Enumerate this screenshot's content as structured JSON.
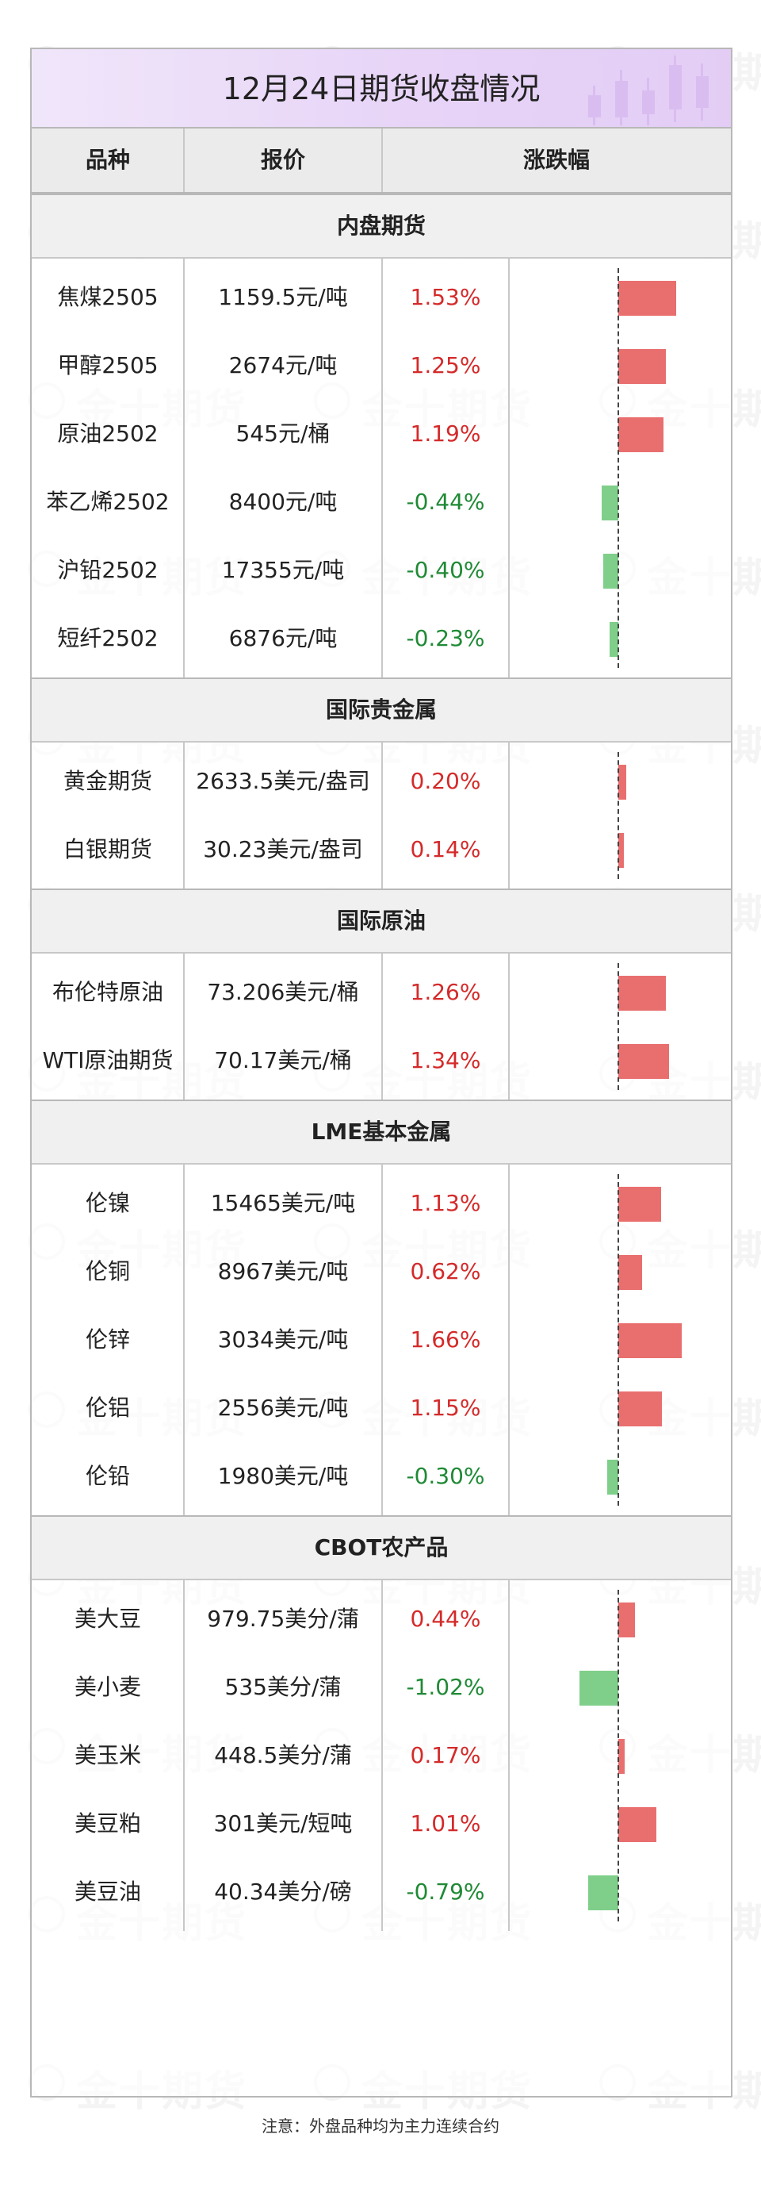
{
  "title": "12月24日期货收盘情况",
  "headers": {
    "name": "品种",
    "price": "报价",
    "change": "涨跌幅"
  },
  "watermark": "金十期货",
  "footnote": "注意：外盘品种均为主力连续合约",
  "colors": {
    "up": "#e96f6f",
    "down": "#7fcf8a",
    "up_text": "#d42a2a",
    "down_text": "#1f8a35",
    "banner": "#e7d4f7"
  },
  "chart_data": {
    "type": "bar",
    "orientation": "horizontal",
    "unit": "%",
    "sections": [
      {
        "title": "内盘期货",
        "items": [
          {
            "name": "焦煤2505",
            "price": "1159.5元/吨",
            "change": 1.53,
            "change_label": "1.53%"
          },
          {
            "name": "甲醇2505",
            "price": "2674元/吨",
            "change": 1.25,
            "change_label": "1.25%"
          },
          {
            "name": "原油2502",
            "price": "545元/桶",
            "change": 1.19,
            "change_label": "1.19%"
          },
          {
            "name": "苯乙烯2502",
            "price": "8400元/吨",
            "change": -0.44,
            "change_label": "-0.44%"
          },
          {
            "name": "沪铅2502",
            "price": "17355元/吨",
            "change": -0.4,
            "change_label": "-0.40%"
          },
          {
            "name": "短纤2502",
            "price": "6876元/吨",
            "change": -0.23,
            "change_label": "-0.23%"
          }
        ]
      },
      {
        "title": "国际贵金属",
        "items": [
          {
            "name": "黄金期货",
            "price": "2633.5美元/盎司",
            "change": 0.2,
            "change_label": "0.20%"
          },
          {
            "name": "白银期货",
            "price": "30.23美元/盎司",
            "change": 0.14,
            "change_label": "0.14%"
          }
        ]
      },
      {
        "title": "国际原油",
        "items": [
          {
            "name": "布伦特原油",
            "price": "73.206美元/桶",
            "change": 1.26,
            "change_label": "1.26%"
          },
          {
            "name": "WTI原油期货",
            "price": "70.17美元/桶",
            "change": 1.34,
            "change_label": "1.34%"
          }
        ]
      },
      {
        "title": "LME基本金属",
        "items": [
          {
            "name": "伦镍",
            "price": "15465美元/吨",
            "change": 1.13,
            "change_label": "1.13%"
          },
          {
            "name": "伦铜",
            "price": "8967美元/吨",
            "change": 0.62,
            "change_label": "0.62%"
          },
          {
            "name": "伦锌",
            "price": "3034美元/吨",
            "change": 1.66,
            "change_label": "1.66%"
          },
          {
            "name": "伦铝",
            "price": "2556美元/吨",
            "change": 1.15,
            "change_label": "1.15%"
          },
          {
            "name": "伦铅",
            "price": "1980美元/吨",
            "change": -0.3,
            "change_label": "-0.30%"
          }
        ]
      },
      {
        "title": "CBOT农产品",
        "items": [
          {
            "name": "美大豆",
            "price": "979.75美分/蒲",
            "change": 0.44,
            "change_label": "0.44%"
          },
          {
            "name": "美小麦",
            "price": "535美分/蒲",
            "change": -1.02,
            "change_label": "-1.02%"
          },
          {
            "name": "美玉米",
            "price": "448.5美分/蒲",
            "change": 0.17,
            "change_label": "0.17%"
          },
          {
            "name": "美豆粕",
            "price": "301美元/短吨",
            "change": 1.01,
            "change_label": "1.01%"
          },
          {
            "name": "美豆油",
            "price": "40.34美分/磅",
            "change": -0.79,
            "change_label": "-0.79%"
          }
        ]
      }
    ]
  }
}
